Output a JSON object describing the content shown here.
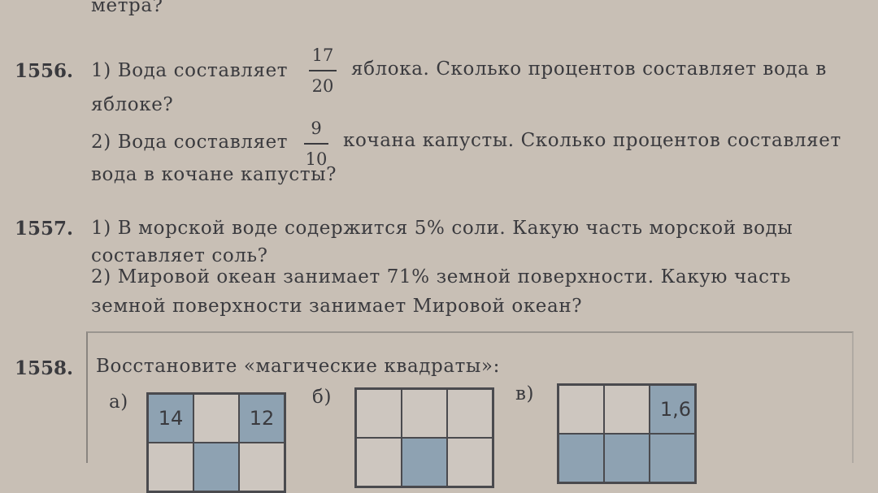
{
  "prev_tail": "метра?",
  "p1556": {
    "number": "1556.",
    "q1_a": "1) Вода составляет",
    "q1_frac": {
      "num": "17",
      "den": "20"
    },
    "q1_b": "яблока. Сколько процентов составляет вода в",
    "q1_c": "яблоке?",
    "q2_a": "2) Вода составляет",
    "q2_frac": {
      "num": "9",
      "den": "10"
    },
    "q2_b": "кочана капусты. Сколько процентов составляет",
    "q2_c": "вода в кочане капусты?"
  },
  "p1557": {
    "number": "1557.",
    "l1": "1) В морской воде содержится 5% соли. Какую часть морской воды",
    "l2": "составляет соль?",
    "l3": "2) Мировой океан занимает 71% земной поверхности. Какую часть",
    "l4": "земной поверхности занимает Мировой океан?"
  },
  "p1558": {
    "number": "1558.",
    "text": "Восстановите «магические квадраты»:",
    "a": {
      "label": "а)",
      "row1": [
        "14",
        "",
        "12"
      ]
    },
    "b": {
      "label": "б)",
      "row1": [
        "",
        "",
        ""
      ]
    },
    "v": {
      "label": "в)",
      "row1": [
        "",
        "",
        "1,6"
      ]
    },
    "cell_fill_color": "#8ea2b2"
  }
}
